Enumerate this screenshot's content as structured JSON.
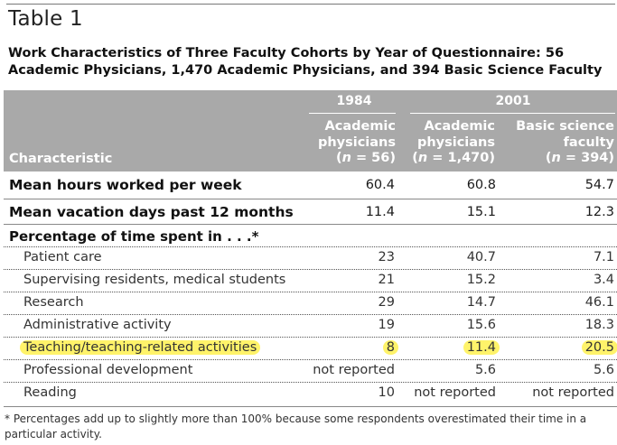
{
  "table": {
    "label": "Table 1",
    "caption": "Work Characteristics of Three Faculty Cohorts by Year of Questionnaire: 56 Academic Physicians, 1,470 Academic Physicians, and 394 Basic Science Faculty"
  },
  "header": {
    "year_1984": "1984",
    "year_2001": "2001",
    "characteristic": "Characteristic",
    "columns": [
      {
        "line1": "Academic",
        "line2": "physicians",
        "n_open": "(",
        "n_var": "n",
        "n_rest": " = 56)"
      },
      {
        "line1": "Academic",
        "line2": "physicians",
        "n_open": "(",
        "n_var": "n",
        "n_rest": " = 1,470)"
      },
      {
        "line1": "Basic science",
        "line2": "faculty",
        "n_open": "(",
        "n_var": "n",
        "n_rest": " = 394)"
      }
    ]
  },
  "rows": {
    "hours": {
      "label": "Mean hours worked per week",
      "values": [
        "60.4",
        "60.8",
        "54.7"
      ]
    },
    "vacation": {
      "label": "Mean vacation days past 12 months",
      "values": [
        "11.4",
        "15.1",
        "12.3"
      ]
    }
  },
  "percentage_section": {
    "label": "Percentage of time spent in . . .*",
    "items": [
      {
        "label": "Patient care",
        "values": [
          "23",
          "40.7",
          "7.1"
        ]
      },
      {
        "label": "Supervising residents, medical students",
        "values": [
          "21",
          "15.2",
          "3.4"
        ]
      },
      {
        "label": "Research",
        "values": [
          "29",
          "14.7",
          "46.1"
        ]
      },
      {
        "label": "Administrative activity",
        "values": [
          "19",
          "15.6",
          "18.3"
        ]
      },
      {
        "label": "Teaching/teaching-related activities",
        "values": [
          "8",
          "11.4",
          "20.5"
        ]
      },
      {
        "label": "Professional development",
        "values": [
          "not reported",
          "5.6",
          "5.6"
        ]
      },
      {
        "label": "Reading",
        "values": [
          "10",
          "not reported",
          "not reported"
        ]
      }
    ]
  },
  "highlight_color": "#fff36a",
  "header_color": "#a9a9a9",
  "footnote": "* Percentages add up to slightly more than 100% because some respondents overestimated their time in a particular activity."
}
